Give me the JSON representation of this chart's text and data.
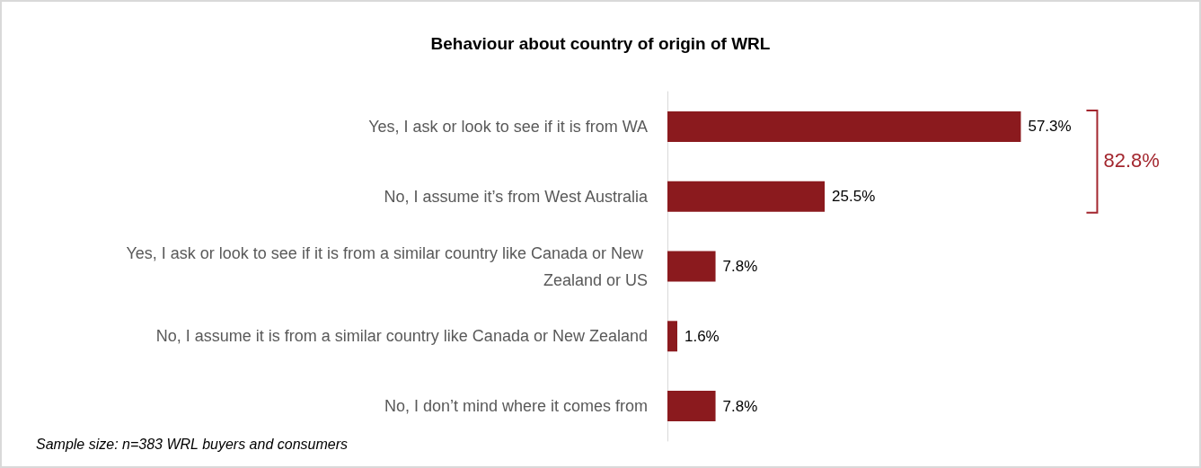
{
  "chart_data": {
    "type": "bar",
    "orientation": "horizontal",
    "title": "Behaviour about country of origin of WRL",
    "categories": [
      "Yes, I ask or look to see if it is from WA",
      "No, I assume it’s from West Australia",
      "Yes, I ask or look to see if it is from a similar country like Canada or New Zealand or US",
      "No, I assume it is from a similar country like Canada or New Zealand",
      "No, I don’t mind where it comes from"
    ],
    "values": [
      57.3,
      25.5,
      7.8,
      1.6,
      7.8
    ],
    "value_labels": [
      "57.3%",
      "25.5%",
      "7.8%",
      "1.6%",
      "7.8%"
    ],
    "color": "#8b1a1e",
    "annotations": [
      "82.8%",
      "Sample size:  n=383 WRL buyers and consumers"
    ]
  }
}
